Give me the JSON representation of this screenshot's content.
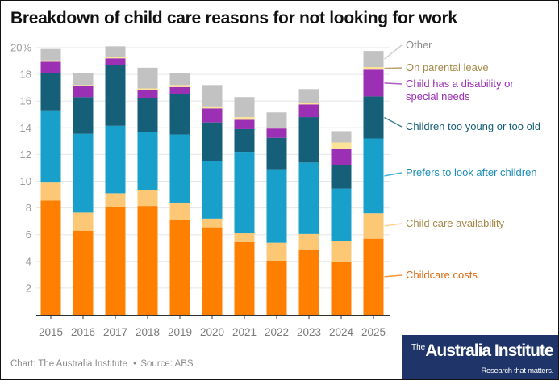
{
  "title": "Breakdown of child care reasons for not looking for work",
  "footer": {
    "credit": "Chart: The Australia Institute",
    "separator": "•",
    "source": "Source: ABS"
  },
  "logo": {
    "prefix": "The",
    "name": "Australia Institute",
    "tagline": "Research that matters.",
    "background": "#1f3468"
  },
  "chart_data": {
    "type": "bar",
    "stacked": true,
    "title": "Breakdown of child care reasons for not looking for work",
    "xlabel": "",
    "ylabel": "",
    "ylim": [
      0,
      20
    ],
    "yticks": [
      0,
      2,
      4,
      6,
      8,
      10,
      12,
      14,
      16,
      18,
      20
    ],
    "ytick_labels": [
      "",
      "2",
      "4",
      "6",
      "8",
      "10",
      "12",
      "14",
      "16",
      "18",
      "20%"
    ],
    "grid": true,
    "legend": "right, direct labels",
    "categories": [
      "2015",
      "2016",
      "2017",
      "2018",
      "2019",
      "2020",
      "2021",
      "2022",
      "2023",
      "2024",
      "2025"
    ],
    "series": [
      {
        "name": "Childcare costs",
        "color": "#ff7f00",
        "label_color": "#d96a10",
        "values": [
          8.55,
          6.3,
          8.1,
          8.15,
          7.1,
          6.55,
          5.45,
          4.05,
          4.85,
          3.95,
          5.7
        ]
      },
      {
        "name": "Child care availability",
        "color": "#fdc876",
        "label_color": "#a6894a",
        "values": [
          1.35,
          1.35,
          1.0,
          1.2,
          1.3,
          0.65,
          0.65,
          1.35,
          1.2,
          1.55,
          1.9
        ]
      },
      {
        "name": "Prefers to look after children",
        "color": "#18a0cb",
        "label_color": "#1a8db5",
        "values": [
          5.4,
          5.9,
          5.05,
          4.35,
          5.1,
          4.3,
          6.1,
          5.5,
          5.35,
          3.95,
          5.6
        ]
      },
      {
        "name": "Children too young or too old",
        "color": "#155f78",
        "label_color": "#155f78",
        "values": [
          2.8,
          2.75,
          4.55,
          2.55,
          3.0,
          2.9,
          1.7,
          2.35,
          3.4,
          1.75,
          3.15
        ]
      },
      {
        "name": "Child has a disability or special needs",
        "color": "#9b30b4",
        "label_color": "#9b30b4",
        "values": [
          0.85,
          0.8,
          0.5,
          0.6,
          0.55,
          1.05,
          0.7,
          0.7,
          0.95,
          1.25,
          2.0
        ]
      },
      {
        "name": "On parental leave",
        "color": "#fde396",
        "label_color": "#a6894a",
        "values": [
          0.1,
          0.1,
          0.1,
          0.1,
          0.15,
          0.15,
          0.2,
          0.05,
          0.1,
          0.45,
          0.2
        ]
      },
      {
        "name": "Other",
        "color": "#c2c2c2",
        "label_color": "#8a8a8a",
        "values": [
          0.85,
          0.9,
          0.8,
          1.55,
          0.9,
          1.6,
          1.5,
          1.15,
          1.05,
          0.85,
          1.2
        ]
      }
    ],
    "legend_labels": [
      {
        "series": "Other",
        "lines": [
          "Other"
        ]
      },
      {
        "series": "On parental leave",
        "lines": [
          "On parental leave"
        ]
      },
      {
        "series": "Child has a disability or special needs",
        "lines": [
          "Child has a disability or",
          "special needs"
        ]
      },
      {
        "series": "Children too young or too old",
        "lines": [
          "Children too young or too old"
        ]
      },
      {
        "series": "Prefers to look after children",
        "lines": [
          "Prefers to look after children"
        ]
      },
      {
        "series": "Child care availability",
        "lines": [
          "Child care availability"
        ]
      },
      {
        "series": "Childcare costs",
        "lines": [
          "Childcare costs"
        ]
      }
    ]
  }
}
